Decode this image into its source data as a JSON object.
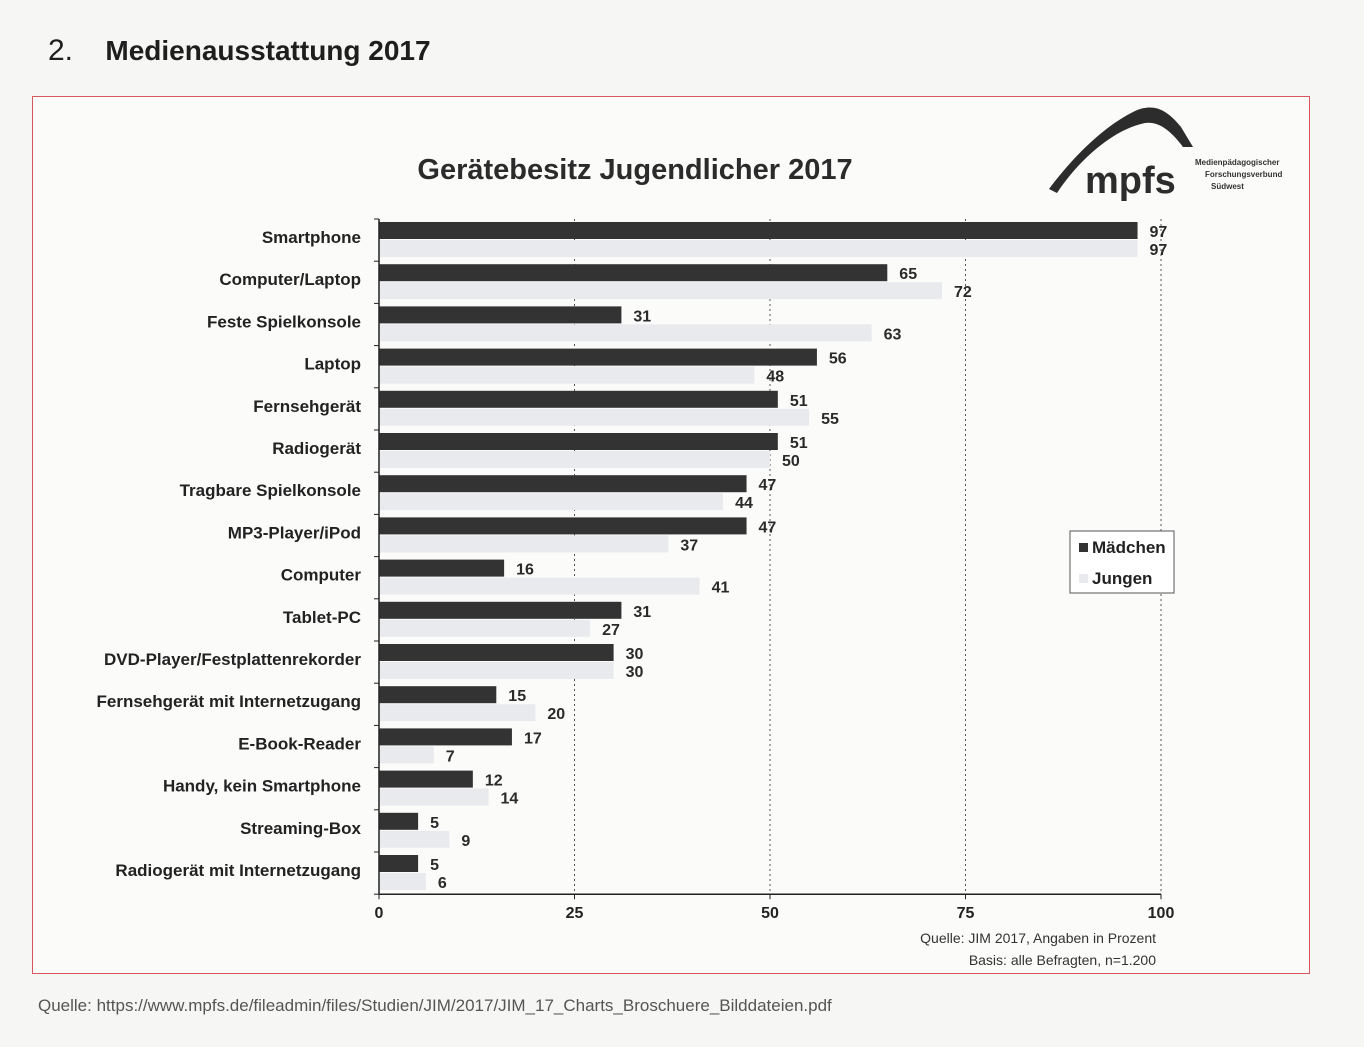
{
  "page": {
    "section_number": "2.",
    "section_title": "Medienausstattung 2017",
    "source_line": "Quelle: https://www.mpfs.de/fileadmin/files/Studien/JIM/2017/JIM_17_Charts_Broschuere_Bilddateien.pdf"
  },
  "logo": {
    "text": "mpfs",
    "subtitle_lines": [
      "Medienpädagogischer",
      "Forschungsverbund",
      "Südwest"
    ]
  },
  "chart_data": {
    "type": "bar",
    "orientation": "horizontal",
    "title": "Gerätebesitz Jugendlicher 2017",
    "xlabel": "",
    "ylabel": "",
    "xlim": [
      0,
      100
    ],
    "xticks": [
      0,
      25,
      50,
      75,
      100
    ],
    "grid": true,
    "legend_position": "right",
    "categories": [
      "Smartphone",
      "Computer/Laptop",
      "Feste Spielkonsole",
      "Laptop",
      "Fernsehgerät",
      "Radiogerät",
      "Tragbare Spielkonsole",
      "MP3-Player/iPod",
      "Computer",
      "Tablet-PC",
      "DVD-Player/Festplattenrekorder",
      "Fernsehgerät mit Internetzugang",
      "E-Book-Reader",
      "Handy, kein Smartphone",
      "Streaming-Box",
      "Radiogerät mit Internetzugang"
    ],
    "series": [
      {
        "name": "Mädchen",
        "color": "#333333",
        "values": [
          97,
          65,
          31,
          56,
          51,
          51,
          47,
          47,
          16,
          31,
          30,
          15,
          17,
          12,
          5,
          5
        ]
      },
      {
        "name": "Jungen",
        "color": "#e8eaee",
        "values": [
          97,
          72,
          63,
          48,
          55,
          50,
          44,
          37,
          41,
          27,
          30,
          20,
          7,
          14,
          9,
          6
        ]
      }
    ],
    "notes": [
      "Quelle: JIM 2017, Angaben in Prozent",
      "Basis: alle Befragten, n=1.200"
    ]
  }
}
